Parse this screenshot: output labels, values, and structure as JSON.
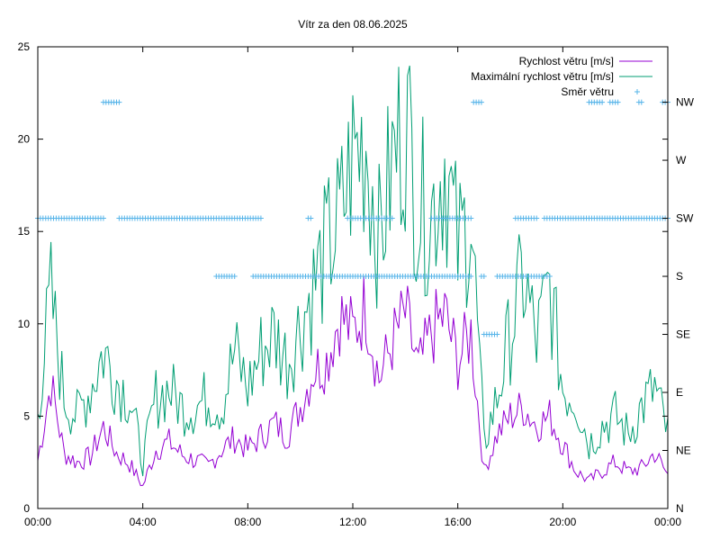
{
  "chart_data": {
    "type": "line",
    "title": "Vítr za den 08.06.2025",
    "xlabel": "",
    "ylabel": "",
    "x_range_hours": [
      0,
      24
    ],
    "ylim": [
      0,
      25
    ],
    "y_ticks": [
      "0",
      "5",
      "10",
      "15",
      "20",
      "25"
    ],
    "x_ticks": [
      "00:00",
      "04:00",
      "08:00",
      "12:00",
      "16:00",
      "20:00",
      "00:00"
    ],
    "y2_ticks": [
      "N",
      "NE",
      "E",
      "SE",
      "S",
      "SW",
      "W",
      "NW"
    ],
    "legend_position": "top-right",
    "grid": false,
    "series": [
      {
        "name": "Rychlost větru [m/s]",
        "color": "#9400d3",
        "x_hours": [
          0,
          0.5,
          1,
          1.5,
          2,
          2.5,
          3,
          3.5,
          4,
          4.5,
          5,
          5.5,
          6,
          6.5,
          7,
          7.5,
          8,
          8.5,
          9,
          9.5,
          10,
          10.5,
          11,
          11.5,
          12,
          12.5,
          13,
          13.5,
          14,
          14.5,
          15,
          15.5,
          16,
          16.5,
          17,
          17.5,
          18,
          18.5,
          19,
          19.5,
          20,
          20.5,
          21,
          21.5,
          22,
          22.5,
          23,
          23.5,
          24
        ],
        "values": [
          2.6,
          6.8,
          3.0,
          2.5,
          2.8,
          4.4,
          3.0,
          2.4,
          1.2,
          3.2,
          3.6,
          2.9,
          2.6,
          2.3,
          3.2,
          3.8,
          3.2,
          3.9,
          4.6,
          4.0,
          5.5,
          7.5,
          8.0,
          10.5,
          9.5,
          11.0,
          7.0,
          9.0,
          10.5,
          7.5,
          9.5,
          10.5,
          8.0,
          9.5,
          2.0,
          4.0,
          5.0,
          5.5,
          4.5,
          5.0,
          3.5,
          2.0,
          1.5,
          2.0,
          2.5,
          2.0,
          2.2,
          3.0,
          1.8
        ]
      },
      {
        "name": "Maximální rychlost větru [m/s]",
        "color": "#009e73",
        "x_hours": [
          0,
          0.5,
          1,
          1.5,
          2,
          2.5,
          3,
          3.5,
          4,
          4.5,
          5,
          5.5,
          6,
          6.5,
          7,
          7.5,
          8,
          8.5,
          9,
          9.5,
          10,
          10.5,
          11,
          11.5,
          12,
          12.5,
          13,
          13.5,
          14,
          14.5,
          15,
          15.5,
          16,
          16.5,
          17,
          17.5,
          18,
          18.5,
          19,
          19.5,
          20,
          20.5,
          21,
          21.5,
          22,
          22.5,
          23,
          23.5,
          24
        ],
        "values": [
          5.5,
          11.5,
          6.0,
          5.0,
          6.5,
          8.5,
          7.0,
          6.0,
          2.5,
          6.0,
          6.5,
          5.5,
          5.5,
          6.0,
          5.5,
          8.5,
          6.5,
          8.5,
          9.5,
          8.0,
          10.0,
          12.0,
          14.0,
          15.5,
          19.0,
          20.0,
          14.5,
          18.5,
          21.2,
          16.5,
          16.0,
          19.0,
          14.0,
          16.0,
          3.5,
          6.0,
          9.5,
          12.5,
          9.0,
          12.0,
          6.5,
          6.0,
          3.5,
          4.5,
          5.0,
          4.0,
          5.5,
          6.5,
          4.0
        ]
      },
      {
        "name": "Směr větru",
        "color": "#56b4e9",
        "axis": "y2",
        "direction_scale": [
          "N",
          "NE",
          "E",
          "SE",
          "S",
          "SW",
          "W",
          "NW"
        ],
        "segments": [
          {
            "from_hours": 0.0,
            "to_hours": 2.5,
            "direction": "SW"
          },
          {
            "from_hours": 2.5,
            "to_hours": 3.1,
            "direction": "NW"
          },
          {
            "from_hours": 3.1,
            "to_hours": 8.5,
            "direction": "SW"
          },
          {
            "from_hours": 6.8,
            "to_hours": 7.5,
            "direction": "S"
          },
          {
            "from_hours": 8.2,
            "to_hours": 16.5,
            "direction": "S"
          },
          {
            "from_hours": 10.3,
            "to_hours": 10.4,
            "direction": "SW"
          },
          {
            "from_hours": 11.8,
            "to_hours": 13.5,
            "direction": "SW"
          },
          {
            "from_hours": 15.0,
            "to_hours": 16.5,
            "direction": "SW"
          },
          {
            "from_hours": 16.6,
            "to_hours": 16.9,
            "direction": "NW"
          },
          {
            "from_hours": 16.9,
            "to_hours": 17.0,
            "direction": "S"
          },
          {
            "from_hours": 17.0,
            "to_hours": 17.5,
            "direction": "SE"
          },
          {
            "from_hours": 17.5,
            "to_hours": 19.5,
            "direction": "S"
          },
          {
            "from_hours": 18.2,
            "to_hours": 19.0,
            "direction": "SW"
          },
          {
            "from_hours": 19.3,
            "to_hours": 24.0,
            "direction": "SW"
          },
          {
            "from_hours": 21.0,
            "to_hours": 21.5,
            "direction": "NW"
          },
          {
            "from_hours": 21.8,
            "to_hours": 22.1,
            "direction": "NW"
          },
          {
            "from_hours": 22.9,
            "to_hours": 23.0,
            "direction": "NW"
          },
          {
            "from_hours": 23.8,
            "to_hours": 24.0,
            "direction": "NW"
          }
        ]
      }
    ]
  }
}
